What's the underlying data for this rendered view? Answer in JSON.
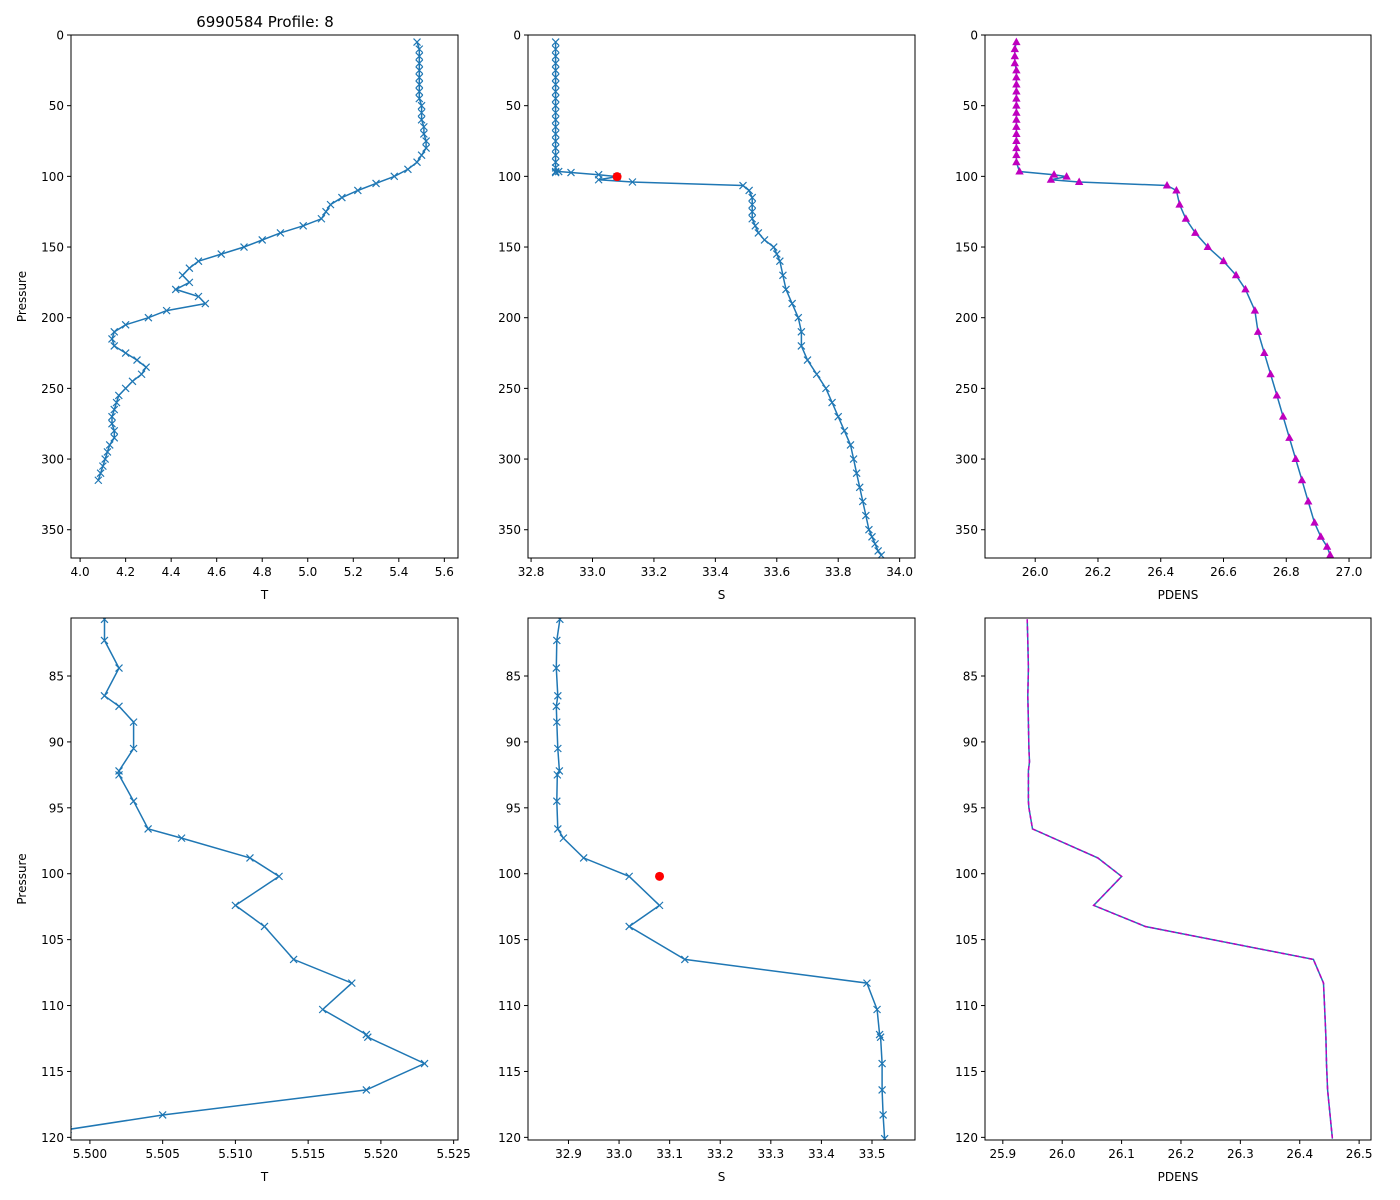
{
  "figure_title": "6990584 Profile: 8",
  "colors": {
    "series": "#1f77b4",
    "flag": "#ff0000",
    "density": "#bf00bf",
    "axes": "#000000"
  },
  "chart_data": [
    {
      "type": "line",
      "id": "top-temperature",
      "title": "6990584 Profile: 8",
      "xlabel": "T",
      "ylabel": "Pressure",
      "xlim": [
        3.96,
        5.66
      ],
      "ylim": [
        370,
        0
      ],
      "y_inverted": true,
      "xticks": [
        4.0,
        4.2,
        4.4,
        4.6,
        4.8,
        5.0,
        5.2,
        5.4,
        5.6
      ],
      "xtick_labels": [
        "4.0",
        "4.2",
        "4.4",
        "4.6",
        "4.8",
        "5.0",
        "5.2",
        "5.4",
        "5.6"
      ],
      "yticks": [
        0,
        50,
        100,
        150,
        200,
        250,
        300,
        350
      ],
      "ytick_labels": [
        "0",
        "50",
        "100",
        "150",
        "200",
        "250",
        "300",
        "350"
      ],
      "series": [
        {
          "name": "T",
          "marker": "x",
          "x": [
            5.48,
            5.49,
            5.49,
            5.49,
            5.49,
            5.49,
            5.49,
            5.49,
            5.49,
            5.5,
            5.5,
            5.5,
            5.51,
            5.51,
            5.52,
            5.52,
            5.5,
            5.48,
            5.44,
            5.38,
            5.3,
            5.22,
            5.15,
            5.1,
            5.08,
            5.06,
            4.98,
            4.88,
            4.8,
            4.72,
            4.62,
            4.52,
            4.48,
            4.45,
            4.48,
            4.42,
            4.52,
            4.55,
            4.38,
            4.3,
            4.2,
            4.15,
            4.14,
            4.15,
            4.2,
            4.25,
            4.29,
            4.27,
            4.23,
            4.2,
            4.17,
            4.16,
            4.15,
            4.14,
            4.14,
            4.15,
            4.15,
            4.13,
            4.12,
            4.11,
            4.1,
            4.09,
            4.08
          ],
          "y": [
            5,
            10,
            15,
            20,
            25,
            30,
            35,
            40,
            45,
            50,
            55,
            60,
            65,
            70,
            75,
            80,
            85,
            90,
            95,
            100,
            105,
            110,
            115,
            120,
            125,
            130,
            135,
            140,
            145,
            150,
            155,
            160,
            165,
            170,
            175,
            180,
            185,
            190,
            195,
            200,
            205,
            210,
            215,
            220,
            225,
            230,
            235,
            240,
            245,
            250,
            255,
            260,
            265,
            270,
            275,
            280,
            285,
            290,
            295,
            300,
            305,
            310,
            315
          ]
        }
      ]
    },
    {
      "type": "line",
      "id": "top-salinity",
      "xlabel": "S",
      "ylabel": "",
      "xlim": [
        32.79,
        34.05
      ],
      "ylim": [
        370,
        0
      ],
      "y_inverted": true,
      "xticks": [
        32.8,
        33.0,
        33.2,
        33.4,
        33.6,
        33.8,
        34.0
      ],
      "xtick_labels": [
        "32.8",
        "33.0",
        "33.2",
        "33.4",
        "33.6",
        "33.8",
        "34.0"
      ],
      "yticks": [
        0,
        50,
        100,
        150,
        200,
        250,
        300,
        350
      ],
      "ytick_labels": [
        "0",
        "50",
        "100",
        "150",
        "200",
        "250",
        "300",
        "350"
      ],
      "series": [
        {
          "name": "S",
          "marker": "x",
          "x": [
            32.88,
            32.88,
            32.88,
            32.88,
            32.88,
            32.88,
            32.88,
            32.88,
            32.88,
            32.88,
            32.88,
            32.88,
            32.88,
            32.88,
            32.88,
            32.88,
            32.88,
            32.88,
            32.88,
            32.88,
            32.88,
            32.89,
            32.93,
            33.02,
            33.08,
            33.02,
            33.13,
            33.49,
            33.51,
            33.52,
            33.52,
            33.52,
            33.52,
            33.53,
            33.54,
            33.56,
            33.59,
            33.6,
            33.61,
            33.62,
            33.63,
            33.65,
            33.67,
            33.68,
            33.68,
            33.7,
            33.73,
            33.76,
            33.78,
            33.8,
            33.82,
            33.84,
            33.85,
            33.86,
            33.87,
            33.88,
            33.89,
            33.9,
            33.91,
            33.92,
            33.93,
            33.94
          ],
          "y": [
            5,
            10,
            15,
            20,
            25,
            30,
            35,
            40,
            45,
            50,
            55,
            60,
            65,
            70,
            75,
            80,
            85,
            90,
            94,
            96.6,
            97.3,
            96.6,
            97.3,
            98.8,
            100.2,
            102.4,
            104.0,
            106.5,
            110,
            115,
            120,
            125,
            130,
            135,
            140,
            145,
            150,
            155,
            160,
            170,
            180,
            190,
            200,
            210,
            220,
            230,
            240,
            250,
            260,
            270,
            280,
            290,
            300,
            310,
            320,
            330,
            340,
            350,
            355,
            360,
            365,
            368
          ]
        }
      ],
      "flag": {
        "x": 33.08,
        "y": 100.2
      }
    },
    {
      "type": "line",
      "id": "top-density",
      "xlabel": "PDENS",
      "ylabel": "",
      "xlim": [
        25.84,
        27.07
      ],
      "ylim": [
        370,
        0
      ],
      "y_inverted": true,
      "xticks": [
        26.0,
        26.2,
        26.4,
        26.6,
        26.8,
        27.0
      ],
      "xtick_labels": [
        "26.0",
        "26.2",
        "26.4",
        "26.6",
        "26.8",
        "27.0"
      ],
      "yticks": [
        0,
        50,
        100,
        150,
        200,
        250,
        300,
        350
      ],
      "ytick_labels": [
        "0",
        "50",
        "100",
        "150",
        "200",
        "250",
        "300",
        "350"
      ],
      "series": [
        {
          "name": "PDENS",
          "marker": "triangle",
          "x": [
            25.94,
            25.935,
            25.935,
            25.935,
            25.94,
            25.94,
            25.94,
            25.94,
            25.94,
            25.94,
            25.94,
            25.94,
            25.94,
            25.94,
            25.94,
            25.94,
            25.94,
            25.94,
            25.95,
            26.06,
            26.1,
            26.05,
            26.14,
            26.42,
            26.45,
            26.46,
            26.48,
            26.51,
            26.55,
            26.6,
            26.64,
            26.67,
            26.7,
            26.71,
            26.73,
            26.75,
            26.77,
            26.79,
            26.81,
            26.83,
            26.85,
            26.87,
            26.89,
            26.91,
            26.93,
            26.94
          ],
          "y": [
            5,
            10,
            15,
            20,
            25,
            30,
            35,
            40,
            45,
            50,
            55,
            60,
            65,
            70,
            75,
            80,
            85,
            90,
            96.6,
            98.8,
            100.2,
            102.4,
            104.0,
            106.5,
            110,
            120,
            130,
            140,
            150,
            160,
            170,
            180,
            195,
            210,
            225,
            240,
            255,
            270,
            285,
            300,
            315,
            330,
            345,
            355,
            362,
            368
          ]
        }
      ]
    },
    {
      "type": "line",
      "id": "bottom-temperature",
      "xlabel": "T",
      "ylabel": "Pressure",
      "xlim": [
        5.4987,
        5.5253
      ],
      "ylim": [
        120.2,
        80.6
      ],
      "y_inverted": true,
      "xticks": [
        5.5,
        5.505,
        5.51,
        5.515,
        5.52,
        5.525
      ],
      "xtick_labels": [
        "5.500",
        "5.505",
        "5.510",
        "5.515",
        "5.520",
        "5.525"
      ],
      "yticks": [
        85,
        90,
        95,
        100,
        105,
        110,
        115,
        120
      ],
      "ytick_labels": [
        "85",
        "90",
        "95",
        "100",
        "105",
        "110",
        "115",
        "120"
      ],
      "series": [
        {
          "name": "T",
          "marker": "x",
          "x": [
            5.501,
            5.501,
            5.502,
            5.501,
            5.502,
            5.503,
            5.503,
            5.502,
            5.502,
            5.503,
            5.504,
            5.5063,
            5.511,
            5.513,
            5.51,
            5.512,
            5.514,
            5.518,
            5.516,
            5.519,
            5.5191,
            5.523,
            5.519,
            5.505,
            5.4985
          ],
          "y": [
            80.7,
            82.3,
            84.4,
            86.5,
            87.3,
            88.5,
            90.5,
            92.2,
            92.5,
            94.5,
            96.6,
            97.3,
            98.8,
            100.2,
            102.4,
            104.0,
            106.5,
            108.3,
            110.3,
            112.2,
            112.4,
            114.4,
            116.4,
            118.3,
            119.4
          ]
        }
      ]
    },
    {
      "type": "line",
      "id": "bottom-salinity",
      "xlabel": "S",
      "ylabel": "",
      "xlim": [
        32.82,
        33.585
      ],
      "ylim": [
        120.2,
        80.6
      ],
      "y_inverted": true,
      "xticks": [
        32.9,
        33.0,
        33.1,
        33.2,
        33.3,
        33.4,
        33.5
      ],
      "xtick_labels": [
        "32.9",
        "33.0",
        "33.1",
        "33.2",
        "33.3",
        "33.4",
        "33.5"
      ],
      "yticks": [
        85,
        90,
        95,
        100,
        105,
        110,
        115,
        120
      ],
      "ytick_labels": [
        "85",
        "90",
        "95",
        "100",
        "105",
        "110",
        "115",
        "120"
      ],
      "series": [
        {
          "name": "S",
          "marker": "x",
          "x": [
            32.883,
            32.877,
            32.876,
            32.879,
            32.876,
            32.877,
            32.879,
            32.882,
            32.878,
            32.877,
            32.879,
            32.89,
            32.93,
            33.02,
            33.08,
            33.02,
            33.13,
            33.49,
            33.51,
            33.515,
            33.517,
            33.52,
            33.52,
            33.522,
            33.525
          ],
          "y": [
            80.7,
            82.3,
            84.4,
            86.5,
            87.3,
            88.5,
            90.5,
            92.2,
            92.5,
            94.5,
            96.6,
            97.3,
            98.8,
            100.2,
            102.4,
            104.0,
            106.5,
            108.3,
            110.3,
            112.2,
            112.4,
            114.4,
            116.4,
            118.3,
            120.1
          ]
        }
      ],
      "flag": {
        "x": 33.08,
        "y": 100.2
      }
    },
    {
      "type": "line",
      "id": "bottom-density",
      "xlabel": "PDENS",
      "ylabel": "",
      "xlim": [
        25.87,
        26.52
      ],
      "ylim": [
        120.2,
        80.6
      ],
      "y_inverted": true,
      "xticks": [
        25.9,
        26.0,
        26.1,
        26.2,
        26.3,
        26.4,
        26.5
      ],
      "xtick_labels": [
        "25.9",
        "26.0",
        "26.1",
        "26.2",
        "26.3",
        "26.4",
        "26.5"
      ],
      "yticks": [
        85,
        90,
        95,
        100,
        105,
        110,
        115,
        120
      ],
      "ytick_labels": [
        "85",
        "90",
        "95",
        "100",
        "105",
        "110",
        "115",
        "120"
      ],
      "series": [
        {
          "name": "PDENS",
          "marker": "none",
          "x": [
            25.941,
            25.942,
            25.943,
            25.942,
            25.943,
            25.944,
            25.945,
            25.943,
            25.943,
            25.944,
            25.95,
            26.06,
            26.1,
            26.053,
            26.14,
            26.423,
            26.44,
            26.442,
            26.444,
            26.445,
            26.447,
            26.455
          ],
          "y": [
            80.7,
            82.3,
            84.4,
            86.5,
            88.5,
            90.5,
            91.5,
            92.2,
            94.5,
            95.0,
            96.6,
            98.8,
            100.2,
            102.4,
            104.0,
            106.5,
            108.3,
            110.3,
            112.4,
            114.4,
            116.4,
            120.1
          ]
        }
      ]
    }
  ]
}
